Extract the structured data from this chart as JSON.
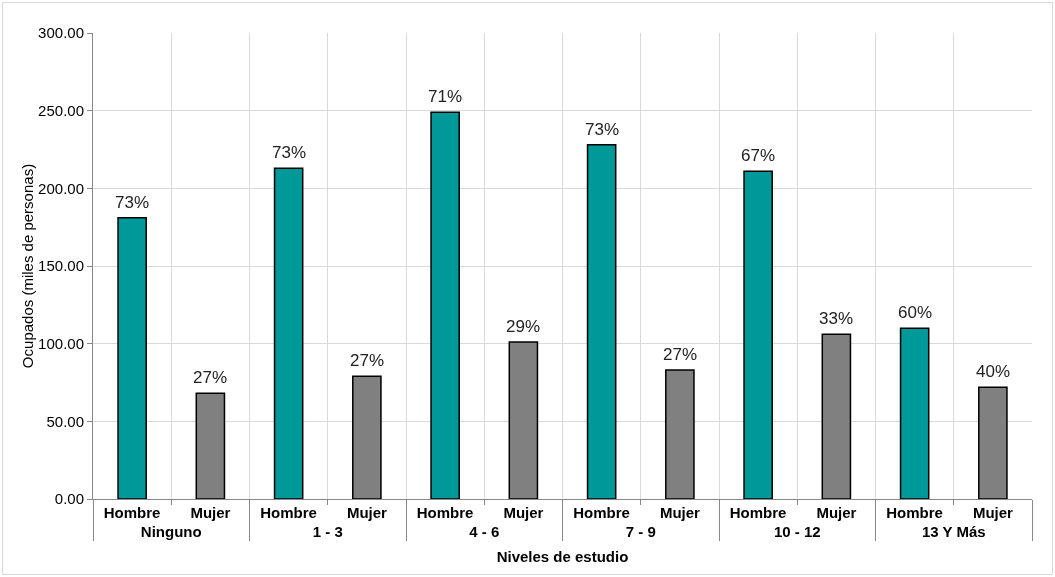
{
  "chart_data": {
    "type": "bar",
    "xlabel": "Niveles de estudio",
    "ylabel": "Ocupados (miles de personas)",
    "categories": [
      "Ninguno",
      "1 - 3",
      "4 - 6",
      "7 - 9",
      "10 - 12",
      "13 Y Más"
    ],
    "series": [
      {
        "name": "Hombre",
        "color": "#009999",
        "values": [
          181,
          213,
          249,
          228,
          211,
          110
        ]
      },
      {
        "name": "Mujer",
        "color": "#808080",
        "values": [
          68,
          79,
          101,
          83,
          106,
          72
        ]
      }
    ],
    "annotations": [
      "73%",
      "27%",
      "73%",
      "27%",
      "71%",
      "29%",
      "73%",
      "27%",
      "67%",
      "33%",
      "60%",
      "40%"
    ],
    "ylim": [
      0,
      300
    ],
    "yticks": [
      {
        "value": 0,
        "label": "0.00"
      },
      {
        "value": 50,
        "label": "50.00"
      },
      {
        "value": 100,
        "label": "100.00"
      },
      {
        "value": 150,
        "label": "150.00"
      },
      {
        "value": 200,
        "label": "200.00"
      },
      {
        "value": 250,
        "label": "250.00"
      },
      {
        "value": 300,
        "label": "300.00"
      }
    ],
    "grid": true,
    "legend": false
  }
}
